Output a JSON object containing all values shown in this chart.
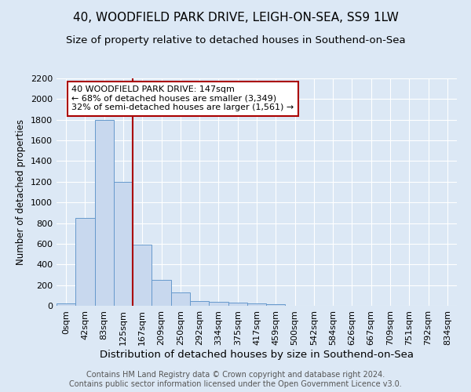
{
  "title1": "40, WOODFIELD PARK DRIVE, LEIGH-ON-SEA, SS9 1LW",
  "title2": "Size of property relative to detached houses in Southend-on-Sea",
  "xlabel": "Distribution of detached houses by size in Southend-on-Sea",
  "ylabel": "Number of detached properties",
  "footer1": "Contains HM Land Registry data © Crown copyright and database right 2024.",
  "footer2": "Contains public sector information licensed under the Open Government Licence v3.0.",
  "bin_labels": [
    "0sqm",
    "42sqm",
    "83sqm",
    "125sqm",
    "167sqm",
    "209sqm",
    "250sqm",
    "292sqm",
    "334sqm",
    "375sqm",
    "417sqm",
    "459sqm",
    "500sqm",
    "542sqm",
    "584sqm",
    "626sqm",
    "667sqm",
    "709sqm",
    "751sqm",
    "792sqm",
    "834sqm"
  ],
  "bar_values": [
    25,
    850,
    1800,
    1200,
    590,
    250,
    130,
    45,
    40,
    30,
    20,
    15,
    0,
    0,
    0,
    0,
    0,
    0,
    0,
    0,
    0
  ],
  "bar_color": "#c8d8ee",
  "bar_edge_color": "#6699cc",
  "annotation_text": "40 WOODFIELD PARK DRIVE: 147sqm\n← 68% of detached houses are smaller (3,349)\n32% of semi-detached houses are larger (1,561) →",
  "annotation_box_color": "#ffffff",
  "annotation_box_edge": "#aa0000",
  "ylim": [
    0,
    2200
  ],
  "yticks": [
    0,
    200,
    400,
    600,
    800,
    1000,
    1200,
    1400,
    1600,
    1800,
    2000,
    2200
  ],
  "background_color": "#dce8f5",
  "plot_bg_color": "#dce8f5",
  "grid_color": "#ffffff",
  "title1_fontsize": 11,
  "title2_fontsize": 9.5,
  "xlabel_fontsize": 9.5,
  "ylabel_fontsize": 8.5,
  "tick_fontsize": 8,
  "footer_fontsize": 7,
  "red_line_color": "#aa0000"
}
